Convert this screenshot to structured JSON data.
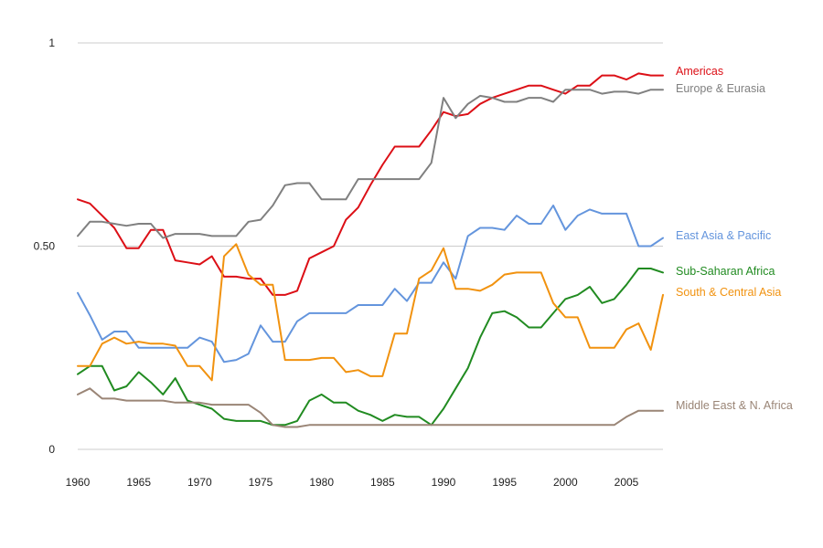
{
  "chart_data": {
    "type": "line",
    "title": "",
    "xlabel": "",
    "ylabel": "",
    "xlim": [
      1960,
      2008
    ],
    "ylim": [
      0,
      1
    ],
    "grid": true,
    "legend_placement": "right, inline at line ends",
    "x_ticks": [
      1960,
      1965,
      1970,
      1975,
      1980,
      1985,
      1990,
      1995,
      2000,
      2005
    ],
    "x_tick_labels": [
      "1960",
      "1965",
      "1970",
      "1975",
      "1980",
      "1985",
      "1990",
      "1995",
      "2000",
      "2005"
    ],
    "y_ticks": [
      0,
      0.5,
      1
    ],
    "y_tick_labels": [
      "0",
      "0.50",
      "1"
    ],
    "x": [
      1960,
      1961,
      1962,
      1963,
      1964,
      1965,
      1966,
      1967,
      1968,
      1969,
      1970,
      1971,
      1972,
      1973,
      1974,
      1975,
      1976,
      1977,
      1978,
      1979,
      1980,
      1981,
      1982,
      1983,
      1984,
      1985,
      1986,
      1987,
      1988,
      1989,
      1990,
      1991,
      1992,
      1993,
      1994,
      1995,
      1996,
      1997,
      1998,
      1999,
      2000,
      2001,
      2002,
      2003,
      2004,
      2005,
      2006,
      2007,
      2008
    ],
    "series": [
      {
        "name": "Americas",
        "color": "#dc0f16",
        "values": [
          0.615,
          0.605,
          0.575,
          0.545,
          0.495,
          0.495,
          0.54,
          0.54,
          0.465,
          0.46,
          0.455,
          0.475,
          0.425,
          0.425,
          0.42,
          0.42,
          0.38,
          0.38,
          0.39,
          0.47,
          0.485,
          0.5,
          0.565,
          0.595,
          0.65,
          0.7,
          0.745,
          0.745,
          0.745,
          0.785,
          0.83,
          0.82,
          0.825,
          0.85,
          0.865,
          0.875,
          0.885,
          0.895,
          0.895,
          0.885,
          0.875,
          0.895,
          0.895,
          0.92,
          0.92,
          0.91,
          0.925,
          0.92,
          0.92
        ]
      },
      {
        "name": "Europe & Eurasia",
        "color": "#808080",
        "values": [
          0.525,
          0.56,
          0.56,
          0.555,
          0.55,
          0.555,
          0.555,
          0.52,
          0.53,
          0.53,
          0.53,
          0.525,
          0.525,
          0.525,
          0.56,
          0.565,
          0.6,
          0.65,
          0.655,
          0.655,
          0.615,
          0.615,
          0.615,
          0.665,
          0.665,
          0.665,
          0.665,
          0.665,
          0.665,
          0.705,
          0.865,
          0.815,
          0.85,
          0.87,
          0.865,
          0.855,
          0.855,
          0.865,
          0.865,
          0.855,
          0.885,
          0.885,
          0.885,
          0.875,
          0.88,
          0.88,
          0.875,
          0.885,
          0.885
        ]
      },
      {
        "name": "East Asia & Pacific",
        "color": "#6495dd",
        "values": [
          0.385,
          0.33,
          0.27,
          0.29,
          0.29,
          0.25,
          0.25,
          0.25,
          0.25,
          0.25,
          0.275,
          0.265,
          0.215,
          0.22,
          0.235,
          0.305,
          0.265,
          0.265,
          0.315,
          0.335,
          0.335,
          0.335,
          0.335,
          0.355,
          0.355,
          0.355,
          0.395,
          0.365,
          0.41,
          0.41,
          0.46,
          0.42,
          0.525,
          0.545,
          0.545,
          0.54,
          0.575,
          0.555,
          0.555,
          0.6,
          0.54,
          0.575,
          0.59,
          0.58,
          0.58,
          0.58,
          0.5,
          0.5,
          0.52
        ]
      },
      {
        "name": "Sub-Saharan Africa",
        "color": "#218b21",
        "values": [
          0.185,
          0.205,
          0.205,
          0.145,
          0.155,
          0.19,
          0.165,
          0.135,
          0.175,
          0.12,
          0.11,
          0.1,
          0.075,
          0.07,
          0.07,
          0.07,
          0.06,
          0.06,
          0.07,
          0.12,
          0.135,
          0.115,
          0.115,
          0.095,
          0.085,
          0.07,
          0.085,
          0.08,
          0.08,
          0.06,
          0.1,
          0.15,
          0.2,
          0.275,
          0.335,
          0.34,
          0.325,
          0.3,
          0.3,
          0.335,
          0.37,
          0.38,
          0.4,
          0.36,
          0.37,
          0.405,
          0.445,
          0.445,
          0.435
        ]
      },
      {
        "name": "South & Central Asia",
        "color": "#f1920f",
        "values": [
          0.205,
          0.205,
          0.26,
          0.275,
          0.26,
          0.265,
          0.26,
          0.26,
          0.255,
          0.205,
          0.205,
          0.17,
          0.475,
          0.505,
          0.43,
          0.405,
          0.405,
          0.22,
          0.22,
          0.22,
          0.225,
          0.225,
          0.19,
          0.195,
          0.18,
          0.18,
          0.285,
          0.285,
          0.42,
          0.44,
          0.495,
          0.395,
          0.395,
          0.39,
          0.405,
          0.43,
          0.435,
          0.435,
          0.435,
          0.36,
          0.325,
          0.325,
          0.25,
          0.25,
          0.25,
          0.295,
          0.31,
          0.245,
          0.38
        ]
      },
      {
        "name": "Middle East & N. Africa",
        "color": "#9a8576",
        "values": [
          0.135,
          0.15,
          0.125,
          0.125,
          0.12,
          0.12,
          0.12,
          0.12,
          0.115,
          0.115,
          0.115,
          0.11,
          0.11,
          0.11,
          0.11,
          0.09,
          0.06,
          0.055,
          0.055,
          0.06,
          0.06,
          0.06,
          0.06,
          0.06,
          0.06,
          0.06,
          0.06,
          0.06,
          0.06,
          0.06,
          0.06,
          0.06,
          0.06,
          0.06,
          0.06,
          0.06,
          0.06,
          0.06,
          0.06,
          0.06,
          0.06,
          0.06,
          0.06,
          0.06,
          0.06,
          0.08,
          0.095,
          0.095,
          0.095
        ]
      }
    ]
  }
}
